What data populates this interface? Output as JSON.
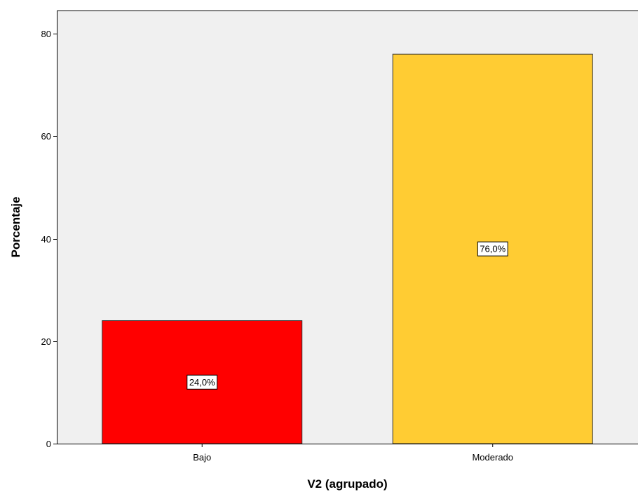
{
  "chart_data": {
    "type": "bar",
    "categories": [
      "Bajo",
      "Moderado"
    ],
    "values": [
      24.0,
      76.0
    ],
    "data_labels": [
      "24,0%",
      "76,0%"
    ],
    "bar_colors": [
      "#ff0000",
      "#ffcc33"
    ],
    "xlabel": "V2 (agrupado)",
    "ylabel": "Porcentaje",
    "ylim": [
      0,
      84
    ],
    "yticks": [
      0,
      20,
      40,
      60,
      80
    ],
    "ytick_labels": [
      "0",
      "20",
      "40",
      "60",
      "80"
    ],
    "grid": false,
    "plot_background": "#f0f0f0",
    "bar_edge_color": "#333333"
  }
}
